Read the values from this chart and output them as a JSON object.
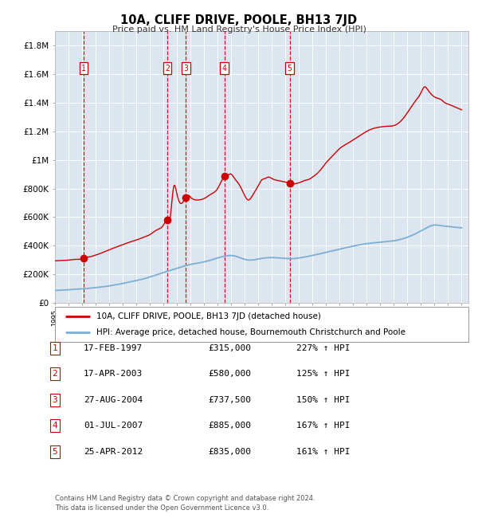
{
  "title": "10A, CLIFF DRIVE, POOLE, BH13 7JD",
  "subtitle": "Price paid vs. HM Land Registry's House Price Index (HPI)",
  "footer1": "Contains HM Land Registry data © Crown copyright and database right 2024.",
  "footer2": "This data is licensed under the Open Government Licence v3.0.",
  "legend_label_red": "10A, CLIFF DRIVE, POOLE, BH13 7JD (detached house)",
  "legend_label_blue": "HPI: Average price, detached house, Bournemouth Christchurch and Poole",
  "red_color": "#cc0000",
  "blue_color": "#7bafd4",
  "plot_bg": "#dce6f1",
  "grid_color": "#ffffff",
  "sale_points": [
    {
      "label": "1",
      "date_num": 1997.12,
      "price": 315000
    },
    {
      "label": "2",
      "date_num": 2003.29,
      "price": 580000
    },
    {
      "label": "3",
      "date_num": 2004.65,
      "price": 737500
    },
    {
      "label": "4",
      "date_num": 2007.5,
      "price": 885000
    },
    {
      "label": "5",
      "date_num": 2012.32,
      "price": 835000
    }
  ],
  "table_rows": [
    {
      "num": "1",
      "date": "17-FEB-1997",
      "price": "£315,000",
      "hpi": "227% ↑ HPI"
    },
    {
      "num": "2",
      "date": "17-APR-2003",
      "price": "£580,000",
      "hpi": "125% ↑ HPI"
    },
    {
      "num": "3",
      "date": "27-AUG-2004",
      "price": "£737,500",
      "hpi": "150% ↑ HPI"
    },
    {
      "num": "4",
      "date": "01-JUL-2007",
      "price": "£885,000",
      "hpi": "167% ↑ HPI"
    },
    {
      "num": "5",
      "date": "25-APR-2012",
      "price": "£835,000",
      "hpi": "161% ↑ HPI"
    }
  ],
  "ylim": [
    0,
    1900000
  ],
  "yticks": [
    0,
    200000,
    400000,
    600000,
    800000,
    1000000,
    1200000,
    1400000,
    1600000,
    1800000
  ],
  "ytick_labels": [
    "£0",
    "£200K",
    "£400K",
    "£600K",
    "£800K",
    "£1M",
    "£1.2M",
    "£1.4M",
    "£1.6M",
    "£1.8M"
  ],
  "xmin": 1995.0,
  "xmax": 2025.5,
  "blue_data": [
    [
      1995.0,
      88000
    ],
    [
      1995.5,
      90000
    ],
    [
      1996.0,
      93000
    ],
    [
      1996.5,
      96000
    ],
    [
      1997.0,
      99000
    ],
    [
      1997.5,
      103000
    ],
    [
      1998.0,
      108000
    ],
    [
      1998.5,
      113000
    ],
    [
      1999.0,
      120000
    ],
    [
      1999.5,
      128000
    ],
    [
      2000.0,
      137000
    ],
    [
      2000.5,
      147000
    ],
    [
      2001.0,
      157000
    ],
    [
      2001.5,
      168000
    ],
    [
      2002.0,
      182000
    ],
    [
      2002.5,
      198000
    ],
    [
      2003.0,
      213000
    ],
    [
      2003.5,
      228000
    ],
    [
      2004.0,
      243000
    ],
    [
      2004.5,
      258000
    ],
    [
      2005.0,
      270000
    ],
    [
      2005.5,
      278000
    ],
    [
      2006.0,
      288000
    ],
    [
      2006.5,
      300000
    ],
    [
      2007.0,
      315000
    ],
    [
      2007.5,
      327000
    ],
    [
      2008.0,
      332000
    ],
    [
      2008.5,
      322000
    ],
    [
      2009.0,
      305000
    ],
    [
      2009.5,
      300000
    ],
    [
      2010.0,
      308000
    ],
    [
      2010.5,
      315000
    ],
    [
      2011.0,
      318000
    ],
    [
      2011.5,
      315000
    ],
    [
      2012.0,
      312000
    ],
    [
      2012.5,
      310000
    ],
    [
      2013.0,
      315000
    ],
    [
      2013.5,
      323000
    ],
    [
      2014.0,
      333000
    ],
    [
      2014.5,
      343000
    ],
    [
      2015.0,
      355000
    ],
    [
      2015.5,
      365000
    ],
    [
      2016.0,
      377000
    ],
    [
      2016.5,
      388000
    ],
    [
      2017.0,
      398000
    ],
    [
      2017.5,
      408000
    ],
    [
      2018.0,
      415000
    ],
    [
      2018.5,
      420000
    ],
    [
      2019.0,
      425000
    ],
    [
      2019.5,
      430000
    ],
    [
      2020.0,
      435000
    ],
    [
      2020.5,
      445000
    ],
    [
      2021.0,
      460000
    ],
    [
      2021.5,
      480000
    ],
    [
      2022.0,
      505000
    ],
    [
      2022.5,
      530000
    ],
    [
      2023.0,
      545000
    ],
    [
      2023.5,
      540000
    ],
    [
      2024.0,
      535000
    ],
    [
      2024.5,
      530000
    ],
    [
      2025.0,
      525000
    ]
  ],
  "red_data": [
    [
      1995.0,
      295000
    ],
    [
      1995.5,
      297000
    ],
    [
      1996.0,
      300000
    ],
    [
      1996.5,
      305000
    ],
    [
      1997.0,
      310000
    ],
    [
      1997.12,
      315000
    ],
    [
      1997.5,
      322000
    ],
    [
      1998.0,
      335000
    ],
    [
      1998.5,
      352000
    ],
    [
      1999.0,
      372000
    ],
    [
      1999.5,
      390000
    ],
    [
      2000.0,
      408000
    ],
    [
      2000.5,
      425000
    ],
    [
      2001.0,
      440000
    ],
    [
      2001.5,
      458000
    ],
    [
      2002.0,
      478000
    ],
    [
      2002.5,
      510000
    ],
    [
      2003.0,
      545000
    ],
    [
      2003.29,
      580000
    ],
    [
      2003.5,
      600000
    ],
    [
      2003.75,
      810000
    ],
    [
      2004.0,
      760000
    ],
    [
      2004.3,
      695000
    ],
    [
      2004.65,
      737500
    ],
    [
      2004.9,
      750000
    ],
    [
      2005.0,
      740000
    ],
    [
      2005.5,
      720000
    ],
    [
      2006.0,
      730000
    ],
    [
      2006.5,
      760000
    ],
    [
      2007.0,
      800000
    ],
    [
      2007.5,
      885000
    ],
    [
      2007.75,
      895000
    ],
    [
      2008.0,
      900000
    ],
    [
      2008.25,
      870000
    ],
    [
      2008.5,
      840000
    ],
    [
      2008.75,
      800000
    ],
    [
      2009.0,
      750000
    ],
    [
      2009.25,
      720000
    ],
    [
      2009.5,
      740000
    ],
    [
      2009.75,
      780000
    ],
    [
      2010.0,
      820000
    ],
    [
      2010.25,
      860000
    ],
    [
      2010.5,
      870000
    ],
    [
      2010.75,
      880000
    ],
    [
      2011.0,
      870000
    ],
    [
      2011.25,
      860000
    ],
    [
      2011.5,
      855000
    ],
    [
      2011.75,
      850000
    ],
    [
      2012.0,
      845000
    ],
    [
      2012.32,
      835000
    ],
    [
      2012.5,
      830000
    ],
    [
      2012.75,
      835000
    ],
    [
      2013.0,
      840000
    ],
    [
      2013.25,
      850000
    ],
    [
      2013.5,
      858000
    ],
    [
      2013.75,
      865000
    ],
    [
      2014.0,
      880000
    ],
    [
      2014.5,
      920000
    ],
    [
      2015.0,
      980000
    ],
    [
      2015.5,
      1030000
    ],
    [
      2016.0,
      1080000
    ],
    [
      2016.5,
      1110000
    ],
    [
      2017.0,
      1140000
    ],
    [
      2017.5,
      1170000
    ],
    [
      2018.0,
      1200000
    ],
    [
      2018.5,
      1220000
    ],
    [
      2019.0,
      1230000
    ],
    [
      2019.5,
      1235000
    ],
    [
      2020.0,
      1240000
    ],
    [
      2020.5,
      1270000
    ],
    [
      2021.0,
      1330000
    ],
    [
      2021.5,
      1400000
    ],
    [
      2022.0,
      1470000
    ],
    [
      2022.25,
      1510000
    ],
    [
      2022.5,
      1490000
    ],
    [
      2022.75,
      1460000
    ],
    [
      2023.0,
      1440000
    ],
    [
      2023.25,
      1430000
    ],
    [
      2023.5,
      1420000
    ],
    [
      2023.75,
      1400000
    ],
    [
      2024.0,
      1390000
    ],
    [
      2024.25,
      1380000
    ],
    [
      2024.5,
      1370000
    ],
    [
      2024.75,
      1360000
    ],
    [
      2025.0,
      1350000
    ]
  ]
}
